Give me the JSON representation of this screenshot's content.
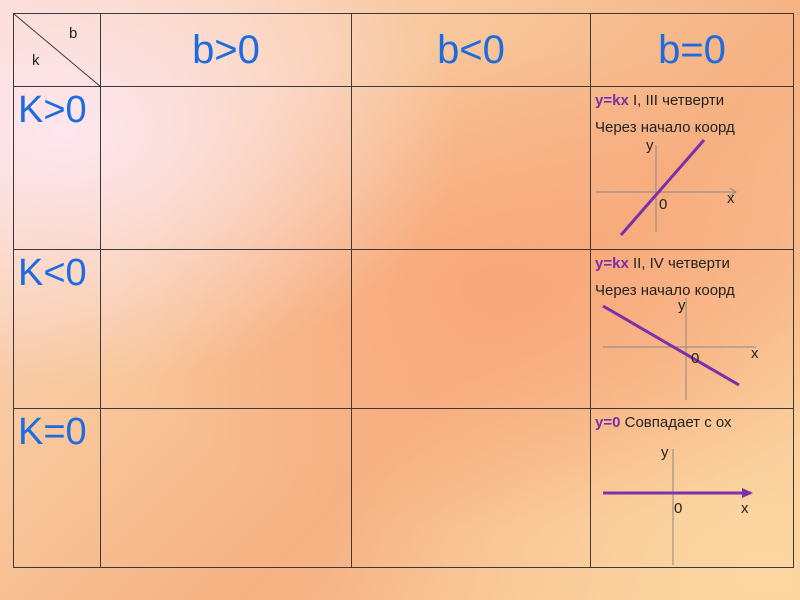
{
  "corner": {
    "b": "b",
    "k": "k"
  },
  "columns": [
    "b>0",
    "b<0",
    "b=0"
  ],
  "rows": [
    {
      "label": "K>0",
      "b0": {
        "equation": "y=kx",
        "quadrants": "I, III   четверти",
        "line2": "Через начало коорд",
        "axis_y": "y",
        "axis_x": "x",
        "origin": "0"
      }
    },
    {
      "label": "K<0",
      "b0": {
        "equation": "y=kx",
        "quadrants": "II, IV   четверти",
        "line2": "Через начало коорд",
        "axis_y": "y",
        "axis_x": "x",
        "origin": "0"
      }
    },
    {
      "label": "K=0",
      "b0": {
        "equation": "y=0",
        "quadrants": "Совпадает с ох",
        "axis_y": "y",
        "axis_x": "x",
        "origin": "0"
      }
    }
  ],
  "colors": {
    "header_text": "#1c6be0",
    "equation": "#7b2fa8",
    "graph_line": "#7b2fa8"
  }
}
